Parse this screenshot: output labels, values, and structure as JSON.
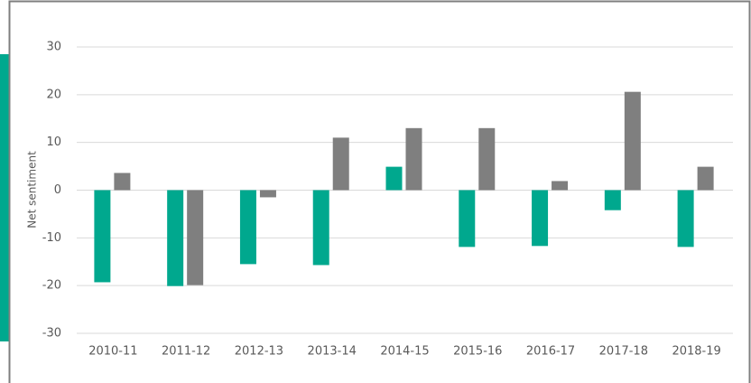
{
  "chart_data": {
    "type": "bar",
    "y_label": "Net sentiment",
    "categories": [
      "2010-11",
      "2011-12",
      "2012-13",
      "2013-14",
      "2014-15",
      "2015-16",
      "2016-17",
      "2017-18",
      "2018-19"
    ],
    "series": [
      {
        "color": "#00a88e",
        "values": [
          -19.3,
          -20.1,
          -15.5,
          -15.7,
          4.9,
          -11.9,
          -11.7,
          -4.2,
          -11.9
        ]
      },
      {
        "color": "#7f7f7f",
        "values": [
          3.6,
          -19.9,
          -1.5,
          11,
          13,
          13,
          1.9,
          20.6,
          4.9
        ]
      }
    ],
    "ylim": [
      -30,
      30
    ],
    "yticks": [
      -30,
      -20,
      -10,
      0,
      10,
      20,
      30
    ],
    "grid": true
  }
}
